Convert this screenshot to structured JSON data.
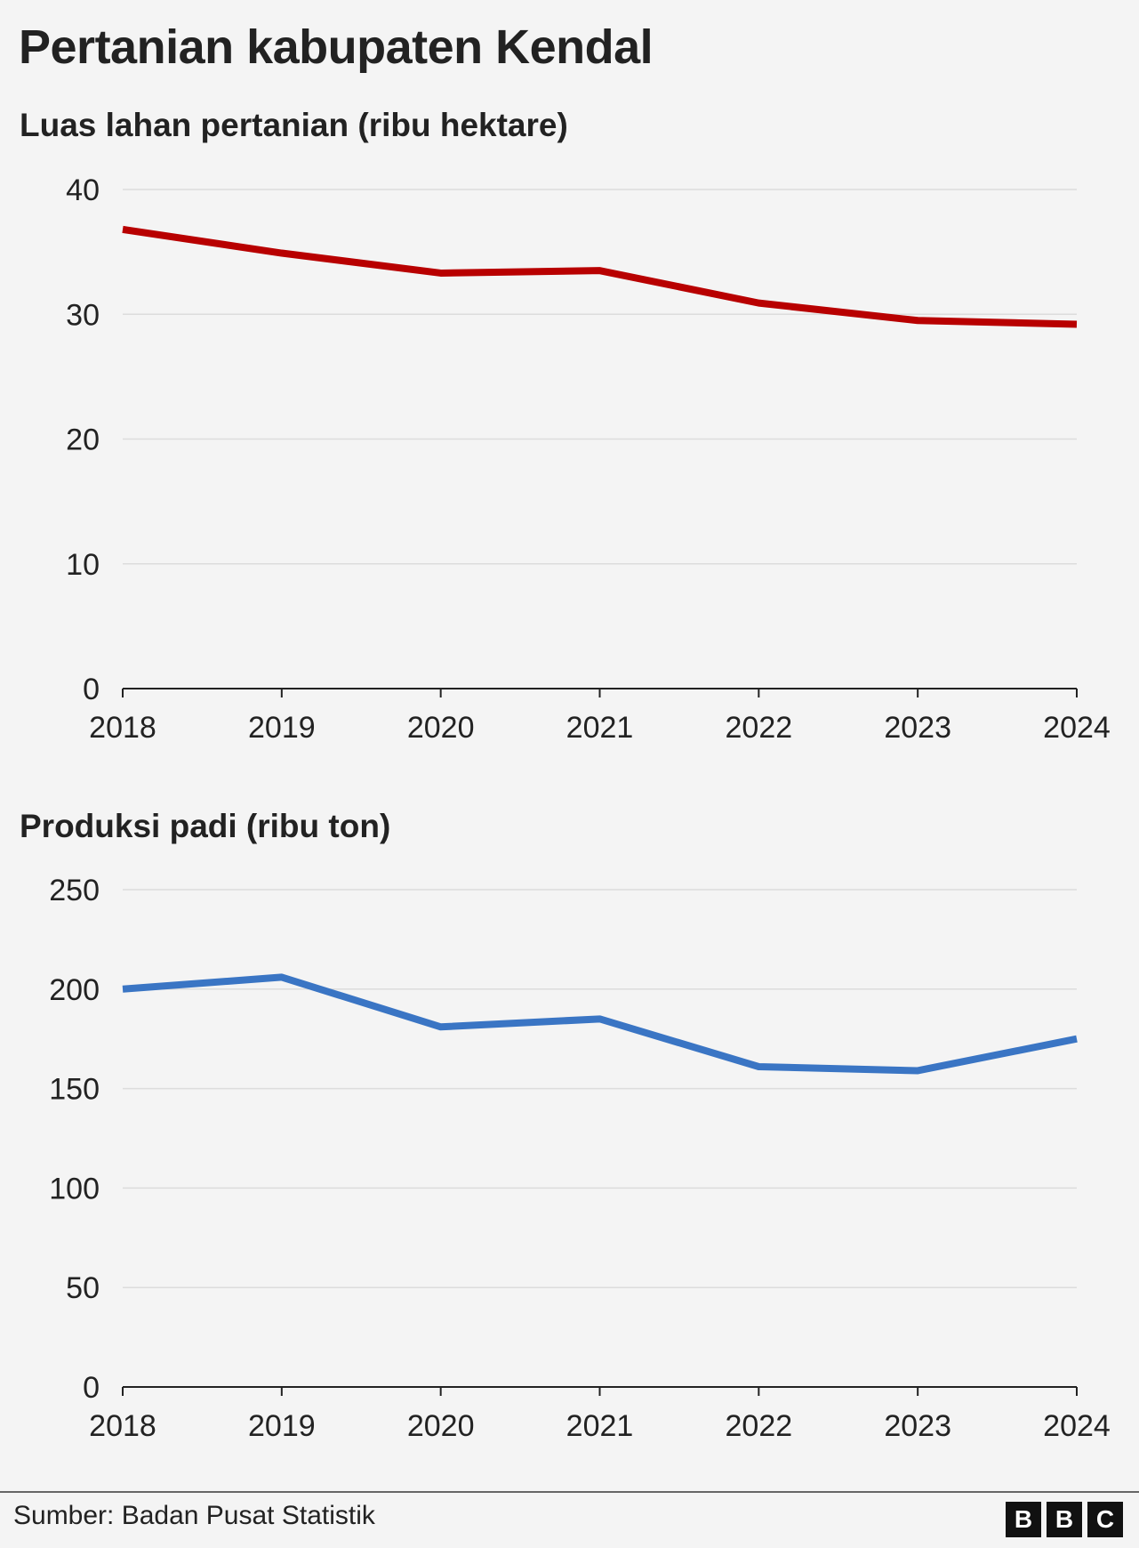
{
  "title": "Pertanian kabupaten Kendal",
  "footer": {
    "source": "Sumber: Badan Pusat Statistik",
    "logo_letters": [
      "B",
      "B",
      "C"
    ]
  },
  "chart_data": [
    {
      "type": "line",
      "title": "Luas lahan pertanian (ribu hektare)",
      "x": [
        "2018",
        "2019",
        "2020",
        "2021",
        "2022",
        "2023",
        "2024"
      ],
      "series": [
        {
          "values": [
            36.8,
            34.9,
            33.3,
            33.5,
            30.9,
            29.5,
            29.2
          ],
          "color": "#b80000"
        }
      ],
      "yticks": [
        0,
        10,
        20,
        30,
        40
      ],
      "ylim": [
        0,
        40
      ],
      "grid": true
    },
    {
      "type": "line",
      "title": "Produksi padi (ribu ton)",
      "x": [
        "2018",
        "2019",
        "2020",
        "2021",
        "2022",
        "2023",
        "2024"
      ],
      "series": [
        {
          "values": [
            200,
            206,
            181,
            185,
            161,
            159,
            175
          ],
          "color": "#3a75c4"
        }
      ],
      "yticks": [
        0,
        50,
        100,
        150,
        200,
        250
      ],
      "ylim": [
        0,
        250
      ],
      "grid": true
    }
  ]
}
